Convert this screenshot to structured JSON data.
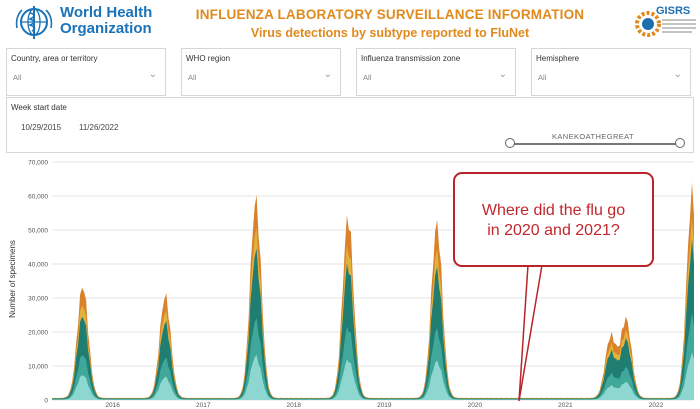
{
  "header": {
    "org_line1": "World Health",
    "org_line2": "Organization",
    "title": "INFLUENZA LABORATORY SURVEILLANCE INFORMATION",
    "subtitle": "Virus detections by subtype reported to FluNet",
    "partner_logo": "GISRS"
  },
  "filters": [
    {
      "label": "Country, area or territory",
      "value": "All"
    },
    {
      "label": "WHO region",
      "value": "All"
    },
    {
      "label": "Influenza transmission zone",
      "value": "All"
    },
    {
      "label": "Hemisphere",
      "value": "All"
    }
  ],
  "week_filter": {
    "label": "Week start date",
    "start": "10/29/2015",
    "end": "11/26/2022",
    "caption": "KANEKOATHEGREAT",
    "range_fraction": [
      0,
      1
    ]
  },
  "callout": {
    "line1": "Where did the flu go",
    "line2": "in 2020 and 2021?"
  },
  "colors": {
    "orange": "#d9822b",
    "amber": "#e3b23c",
    "dark_teal": "#1f7d72",
    "mid_teal": "#3fa89a",
    "light_teal": "#8ed7d0",
    "title": "#e08a1e",
    "who_blue": "#1a73b8",
    "callout": "#c0272d"
  },
  "chart_data": {
    "type": "area",
    "ylabel": "Number of specimens",
    "ylim": [
      0,
      70000
    ],
    "yticks": [
      "0",
      "10,000",
      "20,000",
      "30,000",
      "40,000",
      "50,000",
      "60,000",
      "70,000"
    ],
    "xticks": [
      "2016",
      "2017",
      "2018",
      "2019",
      "2020",
      "2021",
      "2022"
    ],
    "xrange": [
      2015.83,
      2022.92
    ],
    "peaks": [
      {
        "x": 2016.17,
        "total": 33000
      },
      {
        "x": 2017.08,
        "total": 30000
      },
      {
        "x": 2018.08,
        "total": 58000
      },
      {
        "x": 2019.1,
        "total": 53000
      },
      {
        "x": 2020.08,
        "total": 51000
      },
      {
        "x": 2022.0,
        "total": 18000
      },
      {
        "x": 2022.17,
        "total": 23000
      },
      {
        "x": 2022.9,
        "total": 60000
      }
    ]
  }
}
